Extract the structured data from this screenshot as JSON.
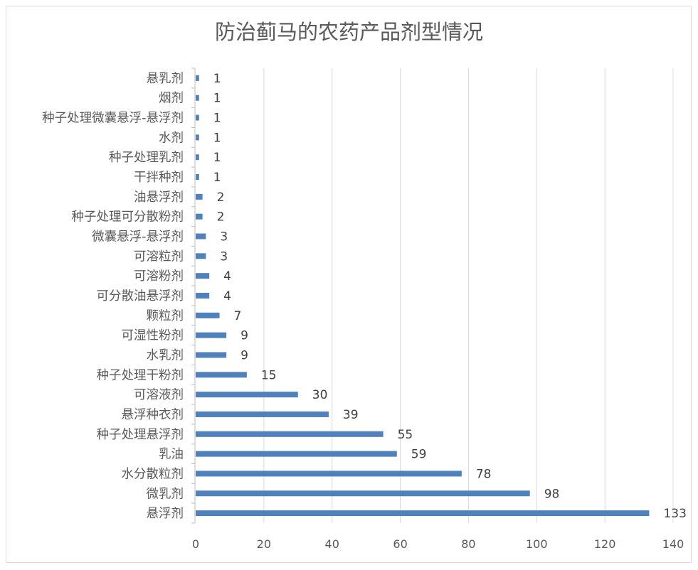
{
  "chart_data": {
    "type": "bar",
    "orientation": "horizontal",
    "title": "防治蓟马的农药产品剂型情况",
    "xlabel": "",
    "ylabel": "",
    "xlim": [
      0,
      140
    ],
    "xticks": [
      0,
      20,
      40,
      60,
      80,
      100,
      120,
      140
    ],
    "grid": true,
    "legend": "none",
    "bar_color": "#4f81bd",
    "categories": [
      "悬乳剂",
      "烟剂",
      "种子处理微囊悬浮-悬浮剂",
      "水剂",
      "种子处理乳剂",
      "干拌种剂",
      "油悬浮剂",
      "种子处理可分散粉剂",
      "微囊悬浮-悬浮剂",
      "可溶粒剂",
      "可溶粉剂",
      "可分散油悬浮剂",
      "颗粒剂",
      "可湿性粉剂",
      "水乳剂",
      "种子处理干粉剂",
      "可溶液剂",
      "悬浮种衣剂",
      "种子处理悬浮剂",
      "乳油",
      "水分散粒剂",
      "微乳剂",
      "悬浮剂"
    ],
    "values": [
      1,
      1,
      1,
      1,
      1,
      1,
      2,
      2,
      3,
      3,
      4,
      4,
      7,
      9,
      9,
      15,
      30,
      39,
      55,
      59,
      78,
      98,
      133
    ]
  }
}
